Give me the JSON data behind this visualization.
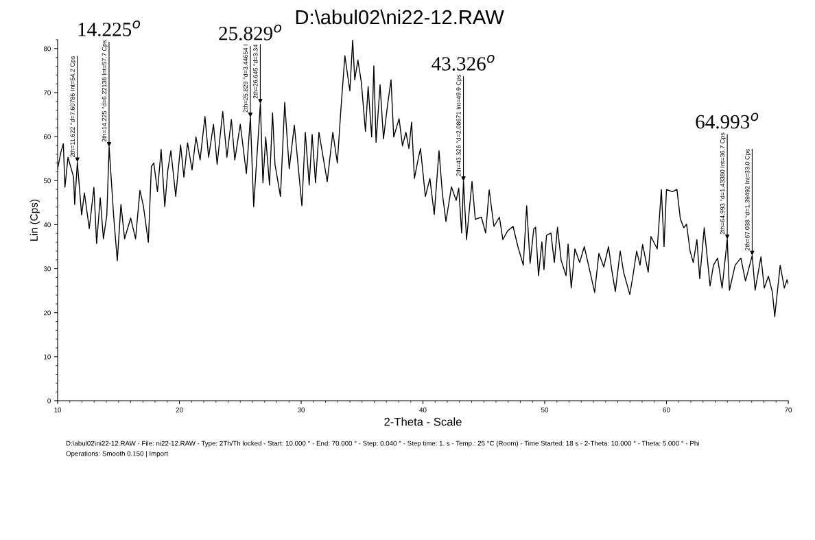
{
  "chart_data": {
    "type": "line",
    "title": "D:\\abul02\\ni22-12.RAW",
    "xlabel": "2-Theta - Scale",
    "ylabel": "Lin (Cps)",
    "xlim": [
      10,
      70
    ],
    "ylim": [
      0,
      82
    ],
    "xticks": [
      10,
      20,
      30,
      40,
      50,
      60,
      70
    ],
    "yticks": [
      0,
      10,
      20,
      30,
      40,
      50,
      60,
      70,
      80
    ],
    "grid": false,
    "legend": false,
    "marker": "none",
    "line_style": "solid",
    "series": [
      {
        "color": "#000000",
        "x": [
          10.0,
          10.28,
          10.47,
          10.6,
          10.85,
          11.31,
          11.4,
          11.62,
          11.97,
          12.2,
          12.6,
          12.98,
          13.2,
          13.5,
          13.76,
          14.04,
          14.23,
          14.6,
          14.9,
          15.2,
          15.5,
          16.0,
          16.4,
          16.76,
          17.04,
          17.45,
          17.7,
          17.9,
          18.2,
          18.5,
          18.8,
          19.05,
          19.3,
          19.7,
          20.1,
          20.37,
          20.67,
          21.04,
          21.36,
          21.7,
          22.1,
          22.4,
          22.8,
          23.1,
          23.56,
          23.9,
          24.27,
          24.55,
          25.0,
          25.5,
          25.83,
          26.1,
          26.65,
          26.86,
          27.09,
          27.4,
          27.65,
          27.85,
          28.3,
          28.65,
          29.02,
          29.44,
          30.06,
          30.34,
          30.66,
          30.9,
          31.18,
          31.46,
          32.14,
          32.6,
          32.97,
          33.25,
          33.59,
          33.84,
          34.0,
          34.23,
          34.4,
          34.66,
          34.94,
          35.28,
          35.5,
          35.79,
          35.97,
          36.15,
          36.48,
          36.76,
          37.1,
          37.38,
          37.6,
          38.04,
          38.32,
          38.6,
          38.85,
          39.07,
          39.3,
          39.63,
          39.8,
          40.2,
          40.57,
          40.93,
          41.32,
          41.6,
          41.89,
          42.34,
          42.73,
          42.94,
          43.18,
          43.33,
          43.58,
          44.03,
          44.3,
          44.8,
          45.15,
          45.44,
          45.83,
          46.28,
          46.56,
          46.96,
          47.4,
          47.8,
          48.24,
          48.52,
          48.8,
          49.1,
          49.25,
          49.49,
          49.77,
          49.94,
          50.15,
          50.51,
          50.79,
          51.05,
          51.35,
          51.75,
          51.92,
          52.18,
          52.48,
          52.87,
          53.25,
          53.6,
          54.1,
          54.45,
          54.85,
          55.24,
          55.5,
          55.8,
          56.2,
          56.48,
          56.99,
          57.27,
          57.55,
          57.83,
          58.04,
          58.5,
          58.73,
          59.24,
          59.58,
          59.8,
          60.0,
          60.48,
          60.86,
          61.14,
          61.42,
          61.65,
          61.94,
          62.2,
          62.5,
          62.73,
          63.1,
          63.58,
          63.86,
          64.2,
          64.57,
          64.99,
          65.17,
          65.64,
          66.11,
          66.49,
          67.04,
          67.28,
          67.76,
          68.03,
          68.37,
          68.7,
          68.89,
          69.34,
          69.68,
          69.9,
          70.0
        ],
        "values": [
          52.7,
          56.6,
          58.4,
          48.5,
          55.3,
          50.8,
          44.6,
          54.2,
          42.2,
          47.2,
          39.1,
          48.5,
          35.7,
          46.1,
          36.8,
          42.2,
          57.7,
          42.0,
          31.8,
          44.6,
          36.8,
          41.5,
          36.8,
          47.8,
          44.3,
          36.0,
          53.2,
          54.0,
          47.5,
          57.1,
          44.1,
          52.4,
          56.8,
          46.4,
          58.1,
          50.8,
          58.6,
          52.4,
          59.9,
          54.7,
          64.6,
          55.3,
          62.8,
          53.7,
          65.7,
          55.3,
          63.9,
          54.7,
          62.8,
          51.6,
          64.4,
          44.1,
          67.5,
          49.5,
          59.9,
          49.0,
          65.4,
          53.7,
          46.4,
          67.8,
          52.7,
          62.6,
          44.3,
          61.0,
          49.0,
          60.5,
          49.5,
          61.0,
          49.8,
          61.0,
          54.0,
          65.7,
          78.4,
          73.5,
          70.4,
          82.0,
          72.9,
          77.4,
          72.4,
          61.2,
          71.4,
          59.9,
          76.1,
          58.7,
          71.8,
          59.5,
          67.3,
          72.9,
          59.9,
          64.1,
          57.9,
          61.0,
          57.3,
          63.3,
          50.5,
          55.2,
          57.3,
          46.4,
          50.5,
          42.3,
          56.8,
          47.0,
          40.7,
          48.6,
          45.5,
          48.3,
          38.1,
          49.9,
          36.6,
          49.8,
          41.2,
          41.7,
          38.1,
          47.9,
          39.6,
          41.7,
          36.6,
          38.6,
          39.6,
          35.0,
          30.8,
          44.3,
          31.2,
          39.0,
          39.4,
          28.4,
          36.1,
          29.8,
          37.6,
          38.1,
          31.4,
          39.4,
          31.9,
          28.4,
          35.6,
          25.6,
          34.5,
          31.4,
          35.0,
          30.8,
          24.6,
          33.5,
          30.4,
          35.0,
          29.8,
          24.8,
          34.0,
          29.2,
          24.1,
          28.8,
          34.0,
          30.8,
          35.5,
          29.2,
          37.3,
          34.5,
          48.0,
          35.0,
          48.0,
          47.5,
          48.0,
          41.3,
          39.3,
          40.1,
          34.0,
          31.4,
          36.6,
          27.7,
          39.3,
          26.1,
          30.8,
          32.4,
          25.6,
          36.7,
          25.1,
          30.8,
          32.4,
          27.2,
          33.0,
          25.1,
          32.7,
          25.6,
          28.3,
          24.6,
          19.1,
          30.8,
          25.6,
          27.5,
          26.5
        ]
      }
    ],
    "annotations": [
      {
        "text": "2th=11.622 °d=7.60786 Int=54.2 Cps",
        "x": 11.622,
        "y": 54.2
      },
      {
        "text": "2th=14.225 °d=6.22136 Int=57.7 Cps",
        "x": 14.225,
        "y": 57.7
      },
      {
        "text": "2th=25.829 °d=3.44654 I",
        "x": 25.829,
        "y": 64.4
      },
      {
        "text": "2th=26.645 °d=3.34",
        "x": 26.645,
        "y": 67.5
      },
      {
        "text": "2th=43.326 °d=2.08671 Int=49.9 Cps",
        "x": 43.326,
        "y": 49.9
      },
      {
        "text": "2th=64.993 °d=1.43380 Int=36.7 Cps",
        "x": 64.993,
        "y": 36.7
      },
      {
        "text": "2th=67.038 °d=1.39492 Int=33.0 Cps",
        "x": 67.038,
        "y": 33.0
      },
      {
        "text": "14.225$^{o}$",
        "x": 14.225,
        "y": 57.7
      },
      {
        "text": "25.829$^{o}$",
        "x": 25.829,
        "y": 64.4
      },
      {
        "text": "43.326$^{o}$",
        "x": 43.326,
        "y": 49.9
      },
      {
        "text": "64.993$^{o}$",
        "x": 64.993,
        "y": 36.7
      },
      "D:\\abul02\\ni22-12.RAW - File: ni22-12.RAW - Type: 2Th/Th locked - Start: 10.000 ° - End: 70.000 ° - Step: 0.040 ° - Step time: 1. s - Temp.: 25 °C (Room) - Time Started: 18 s - 2-Theta: 10.000 ° - Theta: 5.000 ° - Phi",
      "Operations: Smooth 0.150 | Import"
    ]
  }
}
